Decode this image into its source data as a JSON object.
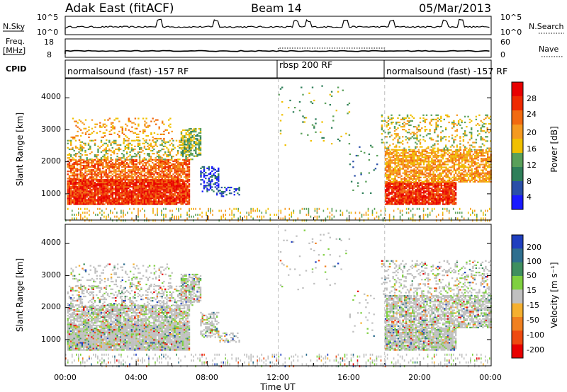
{
  "header": {
    "station": "Adak East (fitACF)",
    "beam": "Beam 14",
    "date": "05/Mar/2013"
  },
  "noise_panel": {
    "left_label": "N.Sky",
    "right_label": "N.Search",
    "left_ticks": [
      "10^5",
      "10^0"
    ],
    "right_ticks": [
      "10^5",
      "10^0"
    ]
  },
  "freq_panel": {
    "left_label_1": "Freq.",
    "left_label_2": "[MHz]",
    "right_label": "Nave",
    "left_ticks": [
      "18",
      "8"
    ],
    "right_ticks": [
      "60",
      "0"
    ]
  },
  "cpid_panel": {
    "label": "CPID",
    "segments": [
      {
        "text": "normalsound (fast) -157 RF",
        "start_hour": 0,
        "end_hour": 12
      },
      {
        "text": "rbsp 200 RF",
        "start_hour": 12,
        "end_hour": 18
      },
      {
        "text": "normalsound (fast) -157 RF",
        "start_hour": 18,
        "end_hour": 24
      }
    ]
  },
  "axes": {
    "ylabel": "Slant Range [km]",
    "yticks": [
      "1000",
      "2000",
      "3000",
      "4000"
    ],
    "xlabel": "Time UT",
    "xticks": [
      "00:00",
      "04:00",
      "08:00",
      "12:00",
      "16:00",
      "20:00",
      "00:00"
    ]
  },
  "power_scale": {
    "label": "Power [dB]",
    "ticks": [
      "4",
      "8",
      "12",
      "16",
      "20",
      "24",
      "28"
    ],
    "colors": [
      "#1a1aff",
      "#2a4fa8",
      "#2f7f5a",
      "#5aa05a",
      "#f0c000",
      "#f59a20",
      "#f26a10",
      "#ee2a00",
      "#e80000"
    ]
  },
  "velocity_scale": {
    "label": "Velocity [m s⁻¹]",
    "ticks": [
      "200",
      "100",
      "50",
      "15",
      "-15",
      "-50",
      "-100",
      "-200"
    ],
    "colors": [
      "#1f3fbf",
      "#2f6f8f",
      "#3f8f5f",
      "#7fd040",
      "#c0c0c0",
      "#f5b030",
      "#f08020",
      "#ee4a10",
      "#e80000"
    ]
  },
  "chart_data": {
    "type": "heatmap",
    "x_range_hours": [
      0,
      24
    ],
    "y_range_km": [
      180,
      4600
    ],
    "dashed_lines_hours": [
      12,
      18
    ],
    "noise_spikes_hours": [
      5.3,
      8.5,
      13.0,
      13.7,
      15.8,
      18.4,
      21.4,
      22.3
    ],
    "panels": [
      {
        "name": "Power [dB]",
        "range": [
          0,
          30
        ]
      },
      {
        "name": "Velocity [m s⁻¹]",
        "range": [
          -200,
          200
        ]
      }
    ]
  }
}
